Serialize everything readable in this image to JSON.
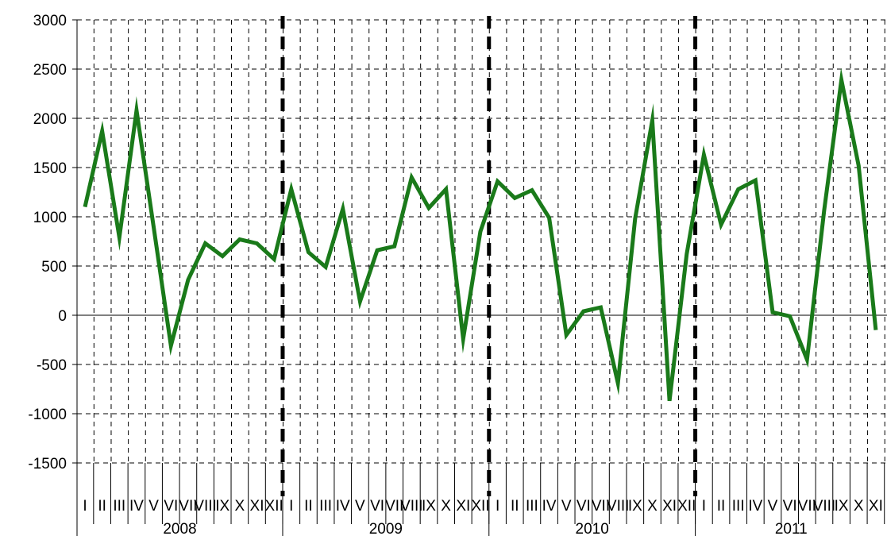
{
  "chart_data": {
    "type": "line",
    "title": "",
    "xlabel": "",
    "ylabel": "",
    "ylim": [
      -1500,
      3000
    ],
    "yticks": [
      3000,
      2500,
      2000,
      1500,
      1000,
      500,
      0,
      -500,
      -1000,
      -1500
    ],
    "ytick_labels": [
      "3000",
      "2500",
      "2000",
      "1500",
      "1000",
      "500",
      "0",
      "-500",
      "-1000",
      "-1500"
    ],
    "grid": true,
    "legend": "none",
    "years": [
      "2008",
      "2009",
      "2010",
      "2011"
    ],
    "months": [
      "I",
      "II",
      "III",
      "IV",
      "V",
      "VI",
      "VII",
      "VIII",
      "IX",
      "X",
      "XI",
      "XII"
    ],
    "series": [
      {
        "color": "#1a7a1a",
        "values": [
          1100,
          1870,
          790,
          2080,
          890,
          -310,
          360,
          730,
          600,
          770,
          730,
          570,
          1280,
          640,
          490,
          1080,
          140,
          660,
          700,
          1400,
          1090,
          1280,
          -240,
          850,
          1360,
          1190,
          1270,
          990,
          -200,
          40,
          80,
          -690,
          980,
          1980,
          -870,
          620,
          1630,
          920,
          1280,
          1370,
          30,
          -10,
          -450,
          1070,
          2390,
          1520,
          -150
        ]
      }
    ],
    "colors": {
      "line": "#1a7a1a",
      "grid": "#000000",
      "year_divider": "#000000"
    }
  }
}
